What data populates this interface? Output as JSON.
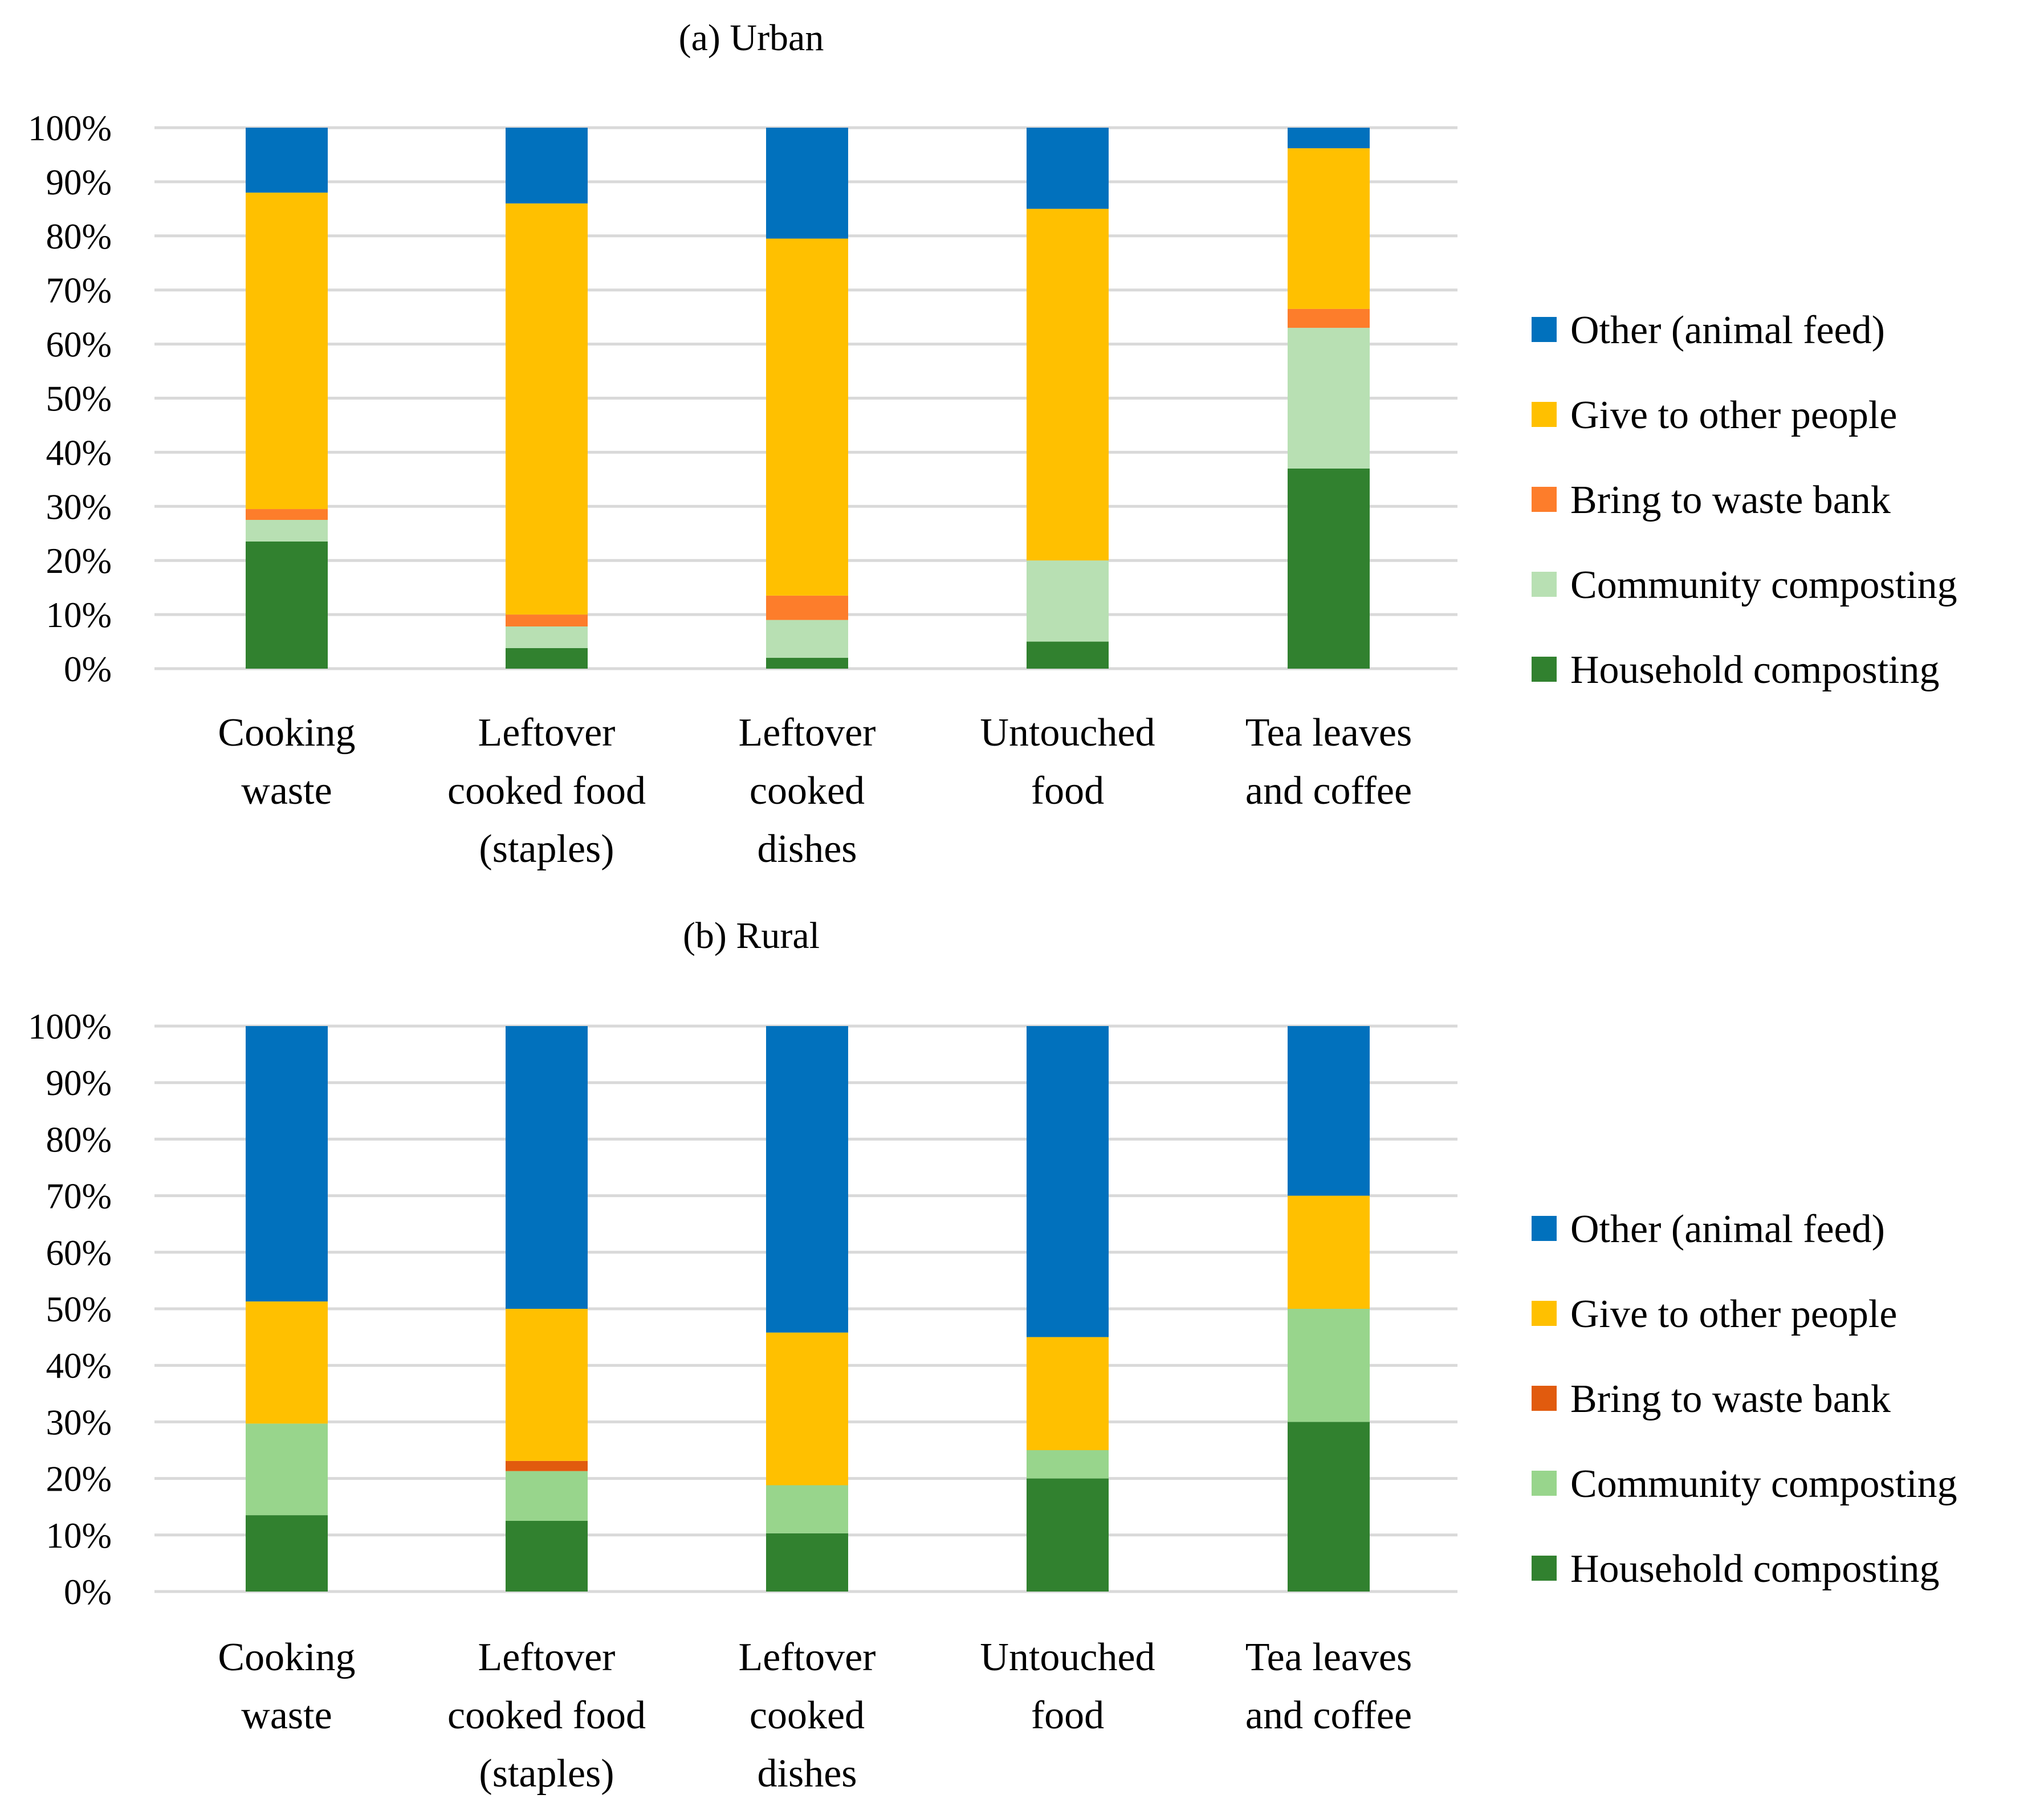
{
  "chart_data": [
    {
      "type": "bar",
      "stacked": true,
      "percent": true,
      "title": "(a) Urban",
      "categories": [
        [
          "Cooking",
          "waste"
        ],
        [
          "Leftover",
          "cooked food",
          "(staples)"
        ],
        [
          "Leftover",
          "cooked",
          "dishes"
        ],
        [
          "Untouched",
          "food"
        ],
        [
          "Tea leaves",
          "and coffee"
        ]
      ],
      "y_ticks": [
        "0%",
        "10%",
        "20%",
        "30%",
        "40%",
        "50%",
        "60%",
        "70%",
        "80%",
        "90%",
        "100%"
      ],
      "ylim": [
        0,
        100
      ],
      "grid": true,
      "legend_position": "right",
      "series": [
        {
          "name": "Household composting",
          "color": "#31812f",
          "values": [
            23.5,
            3.8,
            2.0,
            5.0,
            37.0
          ]
        },
        {
          "name": "Community composting",
          "color": "#b8e0b3",
          "values": [
            4.0,
            4.0,
            7.0,
            15.0,
            26.0
          ]
        },
        {
          "name": "Bring to waste bank",
          "color": "#fd7d2b",
          "values": [
            2.0,
            2.2,
            4.5,
            0.0,
            3.5
          ]
        },
        {
          "name": "Give to other people",
          "color": "#ffc000",
          "values": [
            58.5,
            76.0,
            66.0,
            65.0,
            29.7
          ]
        },
        {
          "name": "Other (animal feed)",
          "color": "#0171bd",
          "values": [
            12.0,
            14.0,
            20.5,
            15.0,
            3.8
          ]
        }
      ]
    },
    {
      "type": "bar",
      "stacked": true,
      "percent": true,
      "title": "(b) Rural",
      "categories": [
        [
          "Cooking",
          "waste"
        ],
        [
          "Leftover",
          "cooked food",
          "(staples)"
        ],
        [
          "Leftover",
          "cooked",
          "dishes"
        ],
        [
          "Untouched",
          "food"
        ],
        [
          "Tea leaves",
          "and coffee"
        ]
      ],
      "y_ticks": [
        "0%",
        "10%",
        "20%",
        "30%",
        "40%",
        "50%",
        "60%",
        "70%",
        "80%",
        "90%",
        "100%"
      ],
      "ylim": [
        0,
        100
      ],
      "grid": true,
      "legend_position": "right",
      "series": [
        {
          "name": "Household composting",
          "color": "#31812f",
          "values": [
            13.5,
            12.5,
            10.3,
            20.0,
            30.0
          ]
        },
        {
          "name": "Community composting",
          "color": "#98d58c",
          "values": [
            16.2,
            8.8,
            8.5,
            5.0,
            20.0
          ]
        },
        {
          "name": "Bring to waste bank",
          "color": "#e15b0e",
          "values": [
            0.0,
            1.8,
            0.0,
            0.0,
            0.0
          ]
        },
        {
          "name": "Give to other people",
          "color": "#ffc000",
          "values": [
            21.6,
            26.9,
            27.0,
            20.0,
            20.0
          ]
        },
        {
          "name": "Other (animal feed)",
          "color": "#0171bd",
          "values": [
            48.7,
            50.0,
            54.2,
            55.0,
            30.0
          ]
        }
      ]
    }
  ]
}
